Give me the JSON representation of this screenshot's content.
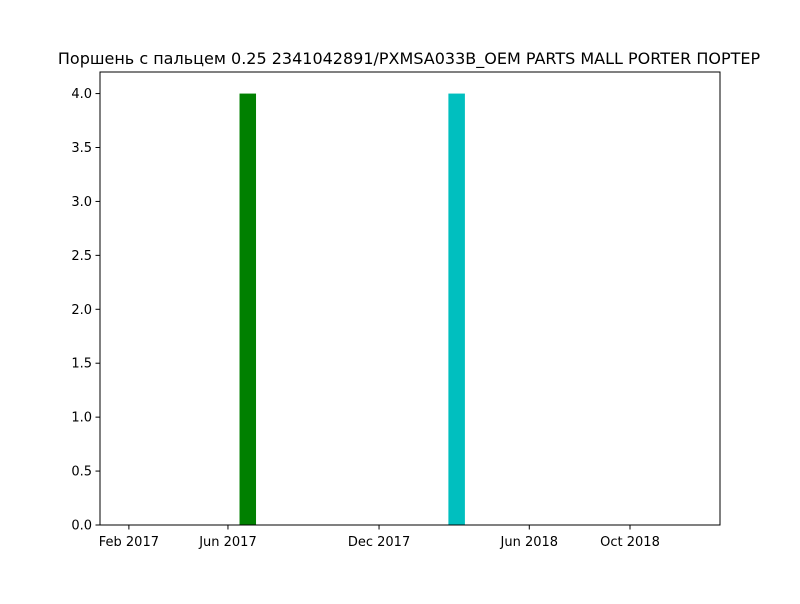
{
  "chart_data": {
    "type": "bar",
    "title": "Поршень с пальцем 0.25 2341042891/PXMSA033B_OEM PARTS MALL PORTER ПОРТЕР",
    "xlabel": "",
    "ylabel": "",
    "x_axis": {
      "type": "date",
      "range": [
        "2016-12-28",
        "2019-01-18"
      ],
      "ticks": [
        {
          "date": "2017-02-01",
          "label": "Feb 2017"
        },
        {
          "date": "2017-06-01",
          "label": "Jun 2017"
        },
        {
          "date": "2017-12-01",
          "label": "Dec 2017"
        },
        {
          "date": "2018-06-01",
          "label": "Jun 2018"
        },
        {
          "date": "2018-10-01",
          "label": "Oct 2018"
        }
      ]
    },
    "y_axis": {
      "range": [
        0,
        4.2
      ],
      "ticks": [
        {
          "value": 0.0,
          "label": "0.0"
        },
        {
          "value": 0.5,
          "label": "0.5"
        },
        {
          "value": 1.0,
          "label": "1.0"
        },
        {
          "value": 1.5,
          "label": "1.5"
        },
        {
          "value": 2.0,
          "label": "2.0"
        },
        {
          "value": 2.5,
          "label": "2.5"
        },
        {
          "value": 3.0,
          "label": "3.0"
        },
        {
          "value": 3.5,
          "label": "3.5"
        },
        {
          "value": 4.0,
          "label": "4.0"
        }
      ]
    },
    "grid": false,
    "bars": [
      {
        "start": "2017-06-15",
        "end": "2017-07-05",
        "value": 4,
        "color": "#008000"
      },
      {
        "start": "2018-02-23",
        "end": "2018-03-15",
        "value": 4,
        "color": "#00bfbf"
      }
    ]
  }
}
